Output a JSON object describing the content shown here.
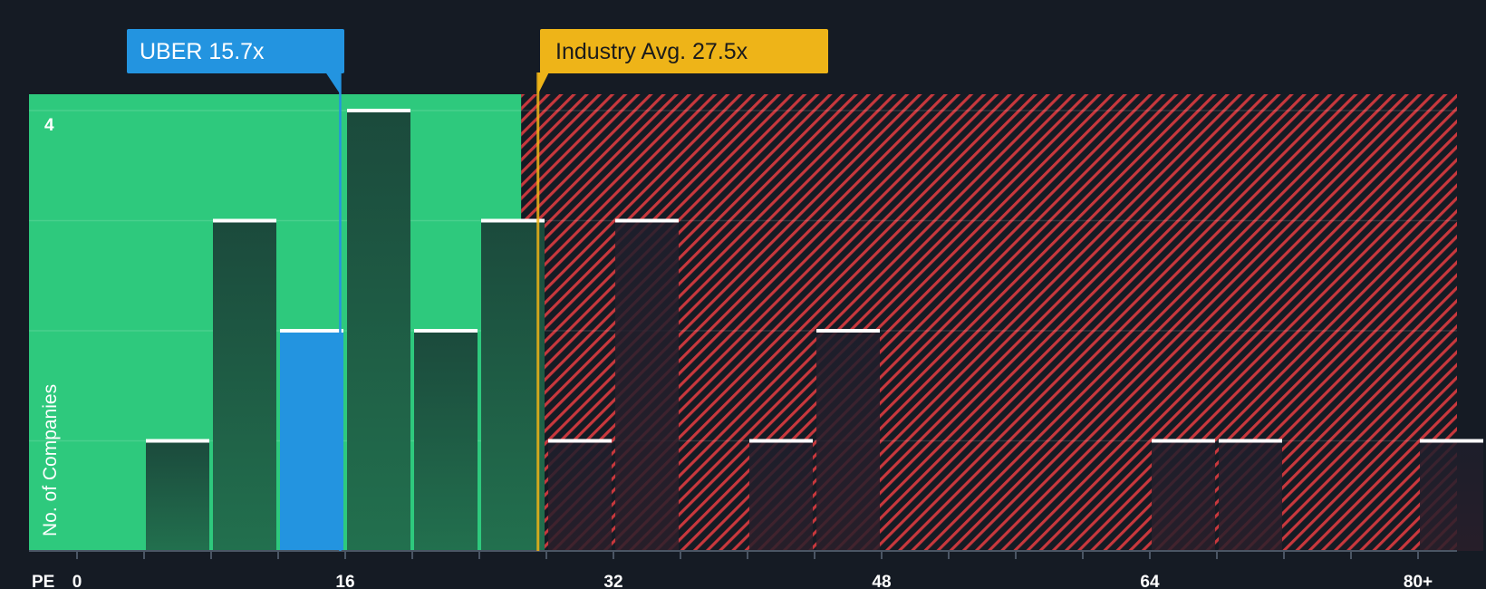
{
  "chart_data": {
    "type": "bar",
    "metric_label": "PE",
    "ylabel": "No. of Companies",
    "ylim": [
      0,
      4
    ],
    "y_ticks_labeled": [
      4
    ],
    "xlim": [
      0,
      82
    ],
    "x_ticks_labeled": [
      "0",
      "16",
      "32",
      "48",
      "64",
      "80+"
    ],
    "x_tick_values": [
      0,
      16,
      32,
      48,
      64,
      80
    ],
    "bin_width": 4,
    "bins": [
      {
        "start": 4,
        "end": 8,
        "count": 1
      },
      {
        "start": 8,
        "end": 12,
        "count": 3
      },
      {
        "start": 12,
        "end": 16,
        "count": 2,
        "highlight": true
      },
      {
        "start": 16,
        "end": 20,
        "count": 4
      },
      {
        "start": 20,
        "end": 24,
        "count": 2
      },
      {
        "start": 24,
        "end": 28,
        "count": 3
      },
      {
        "start": 28,
        "end": 32,
        "count": 1
      },
      {
        "start": 32,
        "end": 36,
        "count": 3
      },
      {
        "start": 40,
        "end": 44,
        "count": 1
      },
      {
        "start": 44,
        "end": 48,
        "count": 2
      },
      {
        "start": 64,
        "end": 68,
        "count": 1
      },
      {
        "start": 68,
        "end": 72,
        "count": 1
      },
      {
        "start": 80,
        "end": 84,
        "count": 1
      }
    ],
    "fair_zone_end": 26.5,
    "company": {
      "label": "UBER 15.7x",
      "value": 15.7
    },
    "industry": {
      "label": "Industry Avg. 27.5x",
      "value": 27.5
    },
    "colors": {
      "background": "#151b24",
      "fair_zone": "#2ec97d",
      "expensive_zone": "#c8383d",
      "company": "#2394e0",
      "industry": "#eeb418",
      "bar_cap": "#ffffff"
    }
  }
}
